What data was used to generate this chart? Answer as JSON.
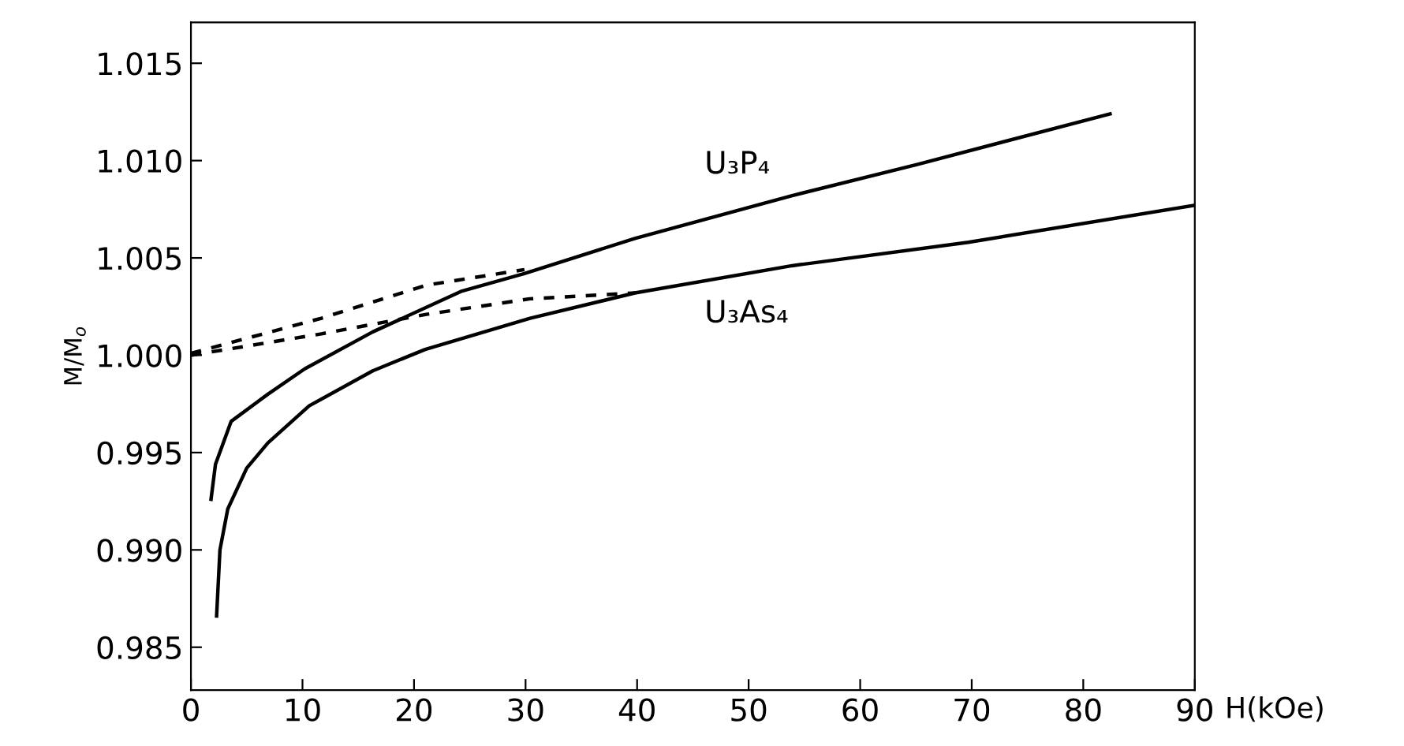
{
  "chart_data": {
    "type": "line",
    "xlabel": "H(kOe)",
    "ylabel": "M/M$_{o}$",
    "xlim": [
      0,
      90
    ],
    "ylim": [
      0.9828,
      1.0171
    ],
    "xticks": [
      0,
      10,
      20,
      30,
      40,
      50,
      60,
      70,
      80,
      90
    ],
    "yticks": [
      {
        "value": 0.985,
        "label": "0.985"
      },
      {
        "value": 0.99,
        "label": "0.990"
      },
      {
        "value": 0.995,
        "label": "0.995"
      },
      {
        "value": 1.0,
        "label": "1.000"
      },
      {
        "value": 1.005,
        "label": "1.005"
      },
      {
        "value": 1.01,
        "label": "1.010"
      },
      {
        "value": 1.015,
        "label": "1.015"
      }
    ],
    "grid": false,
    "legend": false,
    "marker": "none",
    "series": [
      {
        "name": "U₃P₄",
        "color": "#000000",
        "line_style": "solid",
        "x": [
          1.8,
          2.2,
          3.6,
          6.9,
          10.2,
          16.3,
          24.3,
          29.9,
          39.8,
          53.9,
          65.1,
          82.4
        ],
        "values": [
          0.9926,
          0.9944,
          0.9966,
          0.998,
          0.9993,
          1.0012,
          1.0033,
          1.0042,
          1.006,
          1.0082,
          1.0098,
          1.0124
        ]
      },
      {
        "name": "U₃As₄",
        "color": "#000000",
        "line_style": "solid",
        "x": [
          2.3,
          2.6,
          3.3,
          5.0,
          6.9,
          10.6,
          16.3,
          21.0,
          30.4,
          39.8,
          53.9,
          69.7,
          89.9
        ],
        "values": [
          0.9866,
          0.99,
          0.9921,
          0.9942,
          0.9955,
          0.9974,
          0.9992,
          1.0003,
          1.0019,
          1.0032,
          1.0046,
          1.0058,
          1.0077
        ]
      },
      {
        "color": "#000000",
        "line_style": "dashed",
        "x": [
          0,
          11.7,
          21.1,
          29.9
        ],
        "values": [
          1.0001,
          1.0019,
          1.0036,
          1.0044
        ]
      },
      {
        "color": "#000000",
        "line_style": "dashed",
        "x": [
          0,
          11.7,
          21.1,
          30.4,
          39.8
        ],
        "values": [
          1.0,
          1.0011,
          1.0021,
          1.0029,
          1.0032
        ]
      }
    ]
  }
}
